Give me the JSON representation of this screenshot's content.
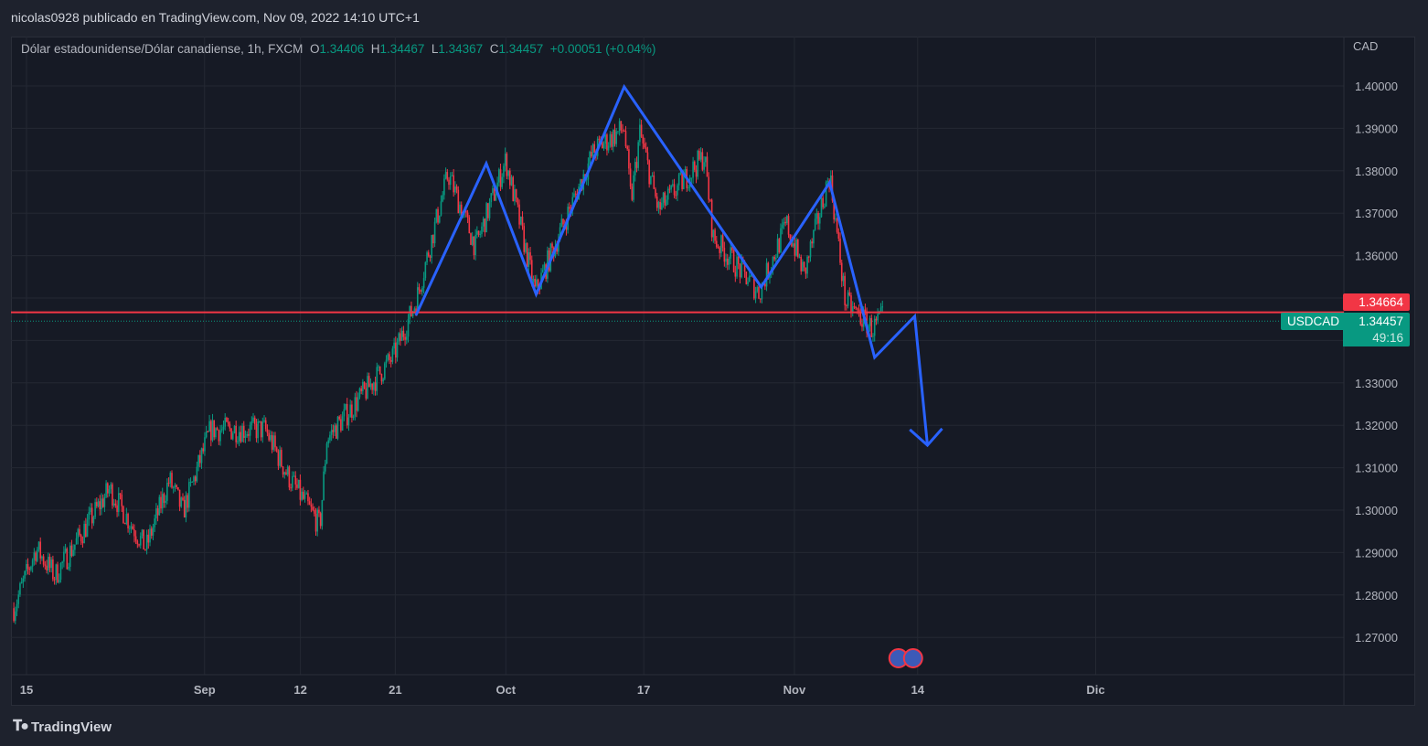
{
  "header": {
    "published": "nicolas0928 publicado en TradingView.com, Nov 09, 2022 14:10 UTC+1"
  },
  "legend": {
    "symbol_desc": "Dólar estadounidense/Dólar canadiense, 1h, FXCM",
    "o_label": "O",
    "o": "1.34406",
    "h_label": "H",
    "h": "1.34467",
    "l_label": "L",
    "l": "1.34367",
    "c_label": "C",
    "c": "1.34457",
    "change": "+0.00051 (+0.04%)"
  },
  "price_axis": {
    "currency": "CAD"
  },
  "tags": {
    "line_price": "1.34664",
    "symbol": "USDCAD",
    "last_price": "1.34457",
    "countdown": "49:16"
  },
  "footer": {
    "brand": "TradingView"
  },
  "colors": {
    "up": "#089981",
    "down": "#f23645",
    "pattern": "#2962ff",
    "line": "#f23645"
  },
  "chart_data": {
    "type": "candlestick",
    "title": "USDCAD 1h",
    "ylim": [
      1.262,
      1.412
    ],
    "y_ticks": [
      "1.27000",
      "1.28000",
      "1.29000",
      "1.30000",
      "1.31000",
      "1.32000",
      "1.33000",
      "1.34000",
      "1.35000",
      "1.36000",
      "1.37000",
      "1.38000",
      "1.39000",
      "1.40000"
    ],
    "x_ticks": [
      {
        "label": "15",
        "day": 0
      },
      {
        "label": "Sep",
        "day": 18.2
      },
      {
        "label": "12",
        "day": 28.0
      },
      {
        "label": "21",
        "day": 37.7
      },
      {
        "label": "Oct",
        "day": 49.0
      },
      {
        "label": "17",
        "day": 63.1
      },
      {
        "label": "Nov",
        "day": 78.5
      },
      {
        "label": "14",
        "day": 91.1
      },
      {
        "label": "Dic",
        "day": 109.3
      }
    ],
    "xlim": [
      -1.6,
      135.6
    ],
    "price_path": [
      [
        -1.3,
        1.2769
      ],
      [
        1.0,
        1.291
      ],
      [
        2.9,
        1.2845
      ],
      [
        8.5,
        1.305
      ],
      [
        12.2,
        1.291
      ],
      [
        14.6,
        1.3071
      ],
      [
        16.0,
        1.2996
      ],
      [
        18.8,
        1.319
      ],
      [
        24.4,
        1.319
      ],
      [
        26.7,
        1.3082
      ],
      [
        30.0,
        1.2963
      ],
      [
        30.7,
        1.3168
      ],
      [
        37.5,
        1.3362
      ],
      [
        39.8,
        1.3491
      ],
      [
        43.1,
        1.3793
      ],
      [
        45.9,
        1.3621
      ],
      [
        49.0,
        1.3825
      ],
      [
        52.0,
        1.3513
      ],
      [
        58.0,
        1.3847
      ],
      [
        61.1,
        1.3901
      ],
      [
        61.8,
        1.3728
      ],
      [
        62.7,
        1.389
      ],
      [
        64.6,
        1.3707
      ],
      [
        69.3,
        1.3836
      ],
      [
        70.2,
        1.3642
      ],
      [
        74.9,
        1.3513
      ],
      [
        77.7,
        1.3675
      ],
      [
        79.5,
        1.3556
      ],
      [
        82.1,
        1.3793
      ],
      [
        83.7,
        1.3491
      ],
      [
        86.5,
        1.3427
      ],
      [
        87.5,
        1.3453
      ]
    ],
    "pattern_line": [
      [
        39.8,
        1.3459
      ],
      [
        47.0,
        1.3817
      ],
      [
        52.1,
        1.3509
      ],
      [
        61.1,
        1.3998
      ],
      [
        75.1,
        1.3526
      ],
      [
        82.1,
        1.3772
      ],
      [
        86.7,
        1.336
      ],
      [
        90.8,
        1.3457
      ],
      [
        92.1,
        1.3153
      ]
    ],
    "arrow_head": [
      [
        90.3,
        1.319
      ],
      [
        92.1,
        1.3153
      ],
      [
        93.6,
        1.3192
      ]
    ],
    "horizontal_line": 1.34664,
    "last_price": 1.34457,
    "events_day": 91.1
  }
}
